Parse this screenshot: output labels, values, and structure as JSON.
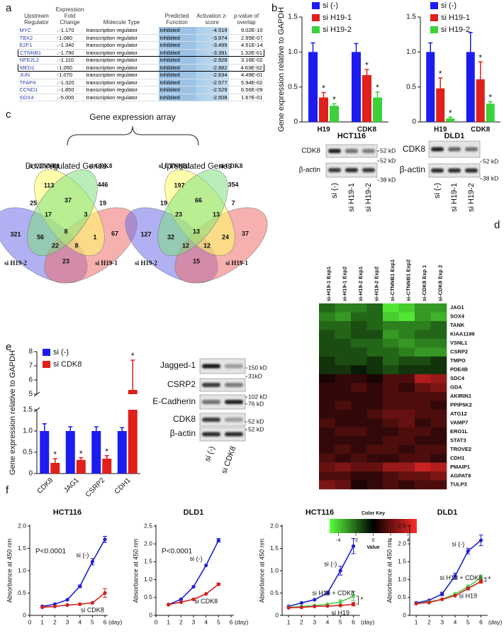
{
  "panel_labels": [
    "a",
    "b",
    "c",
    "d",
    "e",
    "f"
  ],
  "table": {
    "headers": [
      "Upstream Regulator",
      "Expression Fold Change",
      "Molecule Type",
      "Predicted Function",
      "Activation z-score",
      "p-value of overlap"
    ],
    "rows": [
      [
        "MYC",
        "-1.170",
        "transcription regulator",
        "Inhibited",
        "-4.519",
        "9.02E-10"
      ],
      [
        "TBX2",
        "1.080",
        "transcription regulator",
        "Inhibited",
        "-3.974",
        "2.95E-07"
      ],
      [
        "E2F1",
        "-1.340",
        "transcription regulator",
        "Inhibited",
        "-3.499",
        "4.51E-14"
      ],
      [
        "CTNNB1",
        "-1.790",
        "transcription regulator",
        "Inhibited",
        "-3.391",
        "1.32E-01"
      ],
      [
        "NFE2L2",
        "-1.110",
        "transcription regulator",
        "Inhibited",
        "-2.928",
        "3.16E-02"
      ],
      [
        "MED1",
        "1.050",
        "transcription regulator",
        "Inhibited",
        "-2.882",
        "4.63E-02"
      ],
      [
        "JUN",
        "1.070",
        "transcription regulator",
        "Inhibited",
        "-2.634",
        "4.49E-01"
      ],
      [
        "TFAP4",
        "-1.320",
        "transcription regulator",
        "Inhibited",
        "-2.577",
        "5.94E-02"
      ],
      [
        "CCND1",
        "-1.850",
        "transcription regulator",
        "Inhibited",
        "-2.529",
        "6.56E-09"
      ],
      [
        "SOX4",
        "-5.000",
        "transcription regulator",
        "Inhibited",
        "-2.508",
        "1.67E-01"
      ]
    ],
    "boxed_rows": [
      3,
      5
    ]
  },
  "chart_data": [
    {
      "type": "bar",
      "ylabel": "Gene expression relative to GAPDH",
      "categories": [
        "H19",
        "CDK8"
      ],
      "series": [
        {
          "name": "si (-)",
          "color": "#1c1cf0",
          "values": [
            1,
            1
          ],
          "errors": [
            0.13,
            0.12
          ]
        },
        {
          "name": "si H19-1",
          "color": "#e0201a",
          "values": [
            0.35,
            0.67
          ],
          "errors": [
            0.07,
            0.08
          ],
          "stars": [
            "*",
            "*"
          ]
        },
        {
          "name": "si H19-2",
          "color": "#3ad13a",
          "values": [
            0.23,
            0.35
          ],
          "errors": [
            0.03,
            0.08
          ],
          "stars": [
            "*",
            "*"
          ]
        }
      ],
      "ylim": [
        0,
        1.5
      ],
      "yticks": [
        0,
        0.5,
        {
          "value": 1,
          "label": "1.0"
        },
        1.5
      ]
    },
    {
      "type": "bar",
      "categories": [
        "H19",
        "CDK8"
      ],
      "series": [
        {
          "name": "si (-)",
          "color": "#1c1cf0",
          "values": [
            1,
            1
          ],
          "errors": [
            0.13,
            0.28
          ]
        },
        {
          "name": "si H19-1",
          "color": "#e0201a",
          "values": [
            0.48,
            0.61
          ],
          "errors": [
            0.15,
            0.25
          ],
          "stars": [
            "*",
            "*"
          ]
        },
        {
          "name": "si H19-2",
          "color": "#3ad13a",
          "values": [
            0.05,
            0.26
          ],
          "errors": [
            0.02,
            0.03
          ],
          "stars": [
            "*",
            "*"
          ]
        }
      ],
      "ylim": [
        0,
        1.5
      ],
      "yticks": [
        0,
        0.5,
        {
          "value": 1,
          "label": "1.0"
        },
        1.5
      ]
    },
    {
      "type": "bar",
      "ylabel": "Gene expression relative to GAPDH",
      "categories": [
        "CDK8",
        "JAG1",
        "CSRP2",
        "CDH1"
      ],
      "series": [
        {
          "name": "si (-)",
          "color": "#1c1cf0",
          "values": [
            1,
            1,
            1,
            1
          ],
          "errors": [
            0.17,
            0.1,
            0.1,
            0.08
          ]
        },
        {
          "name": "si CDK8",
          "color": "#e0201a",
          "values": [
            0.25,
            0.32,
            0.35,
            5.3
          ],
          "errors": [
            0.1,
            0.05,
            0.07,
            2.1
          ],
          "stars": [
            "*",
            "*",
            "*",
            "*"
          ]
        }
      ],
      "ylim": [
        0,
        8
      ],
      "ybreak": [
        1.5,
        5
      ],
      "yticks": [
        0,
        0.5,
        {
          "value": 1,
          "label": "1.0"
        },
        1.5,
        5,
        6,
        7,
        8
      ]
    },
    {
      "type": "heatmap",
      "columns": [
        "si-H19-1 Exp1",
        "si-H19-1 Exp2",
        "si-H19-2 Exp1",
        "si-H19-2 Exp2",
        "si-CTNNB1 Exp1",
        "si-CTNNB1 Exp2",
        "si-CDK8 Exp 1",
        "si-CDK8 Exp 2"
      ],
      "rows": [
        "JAG1",
        "SOX4",
        "TANK",
        "KIAA1199",
        "VSNL1",
        "CSRP2",
        "TMPO",
        "PDE4B",
        "SDC4",
        "GDA",
        "AKIRIN1",
        "PPIP5K2",
        "ATG12",
        "VAMP7",
        "ERO1L",
        "STAT3",
        "TROVE2",
        "CDH1",
        "PMAIP1",
        "AGPAT9",
        "TULP3"
      ],
      "values": [
        [
          -2,
          -2.5,
          -2.5,
          -2,
          -4.5,
          -4,
          -3,
          -3
        ],
        [
          -2.5,
          -3,
          -2,
          -2,
          -4,
          -4.5,
          -3,
          -3.5
        ],
        [
          -2,
          -2,
          -1.5,
          -2,
          -2.5,
          -2.5,
          -2.5,
          -2
        ],
        [
          -1.5,
          -2,
          -1.5,
          -1.5,
          -3,
          -2.5,
          -2,
          -2
        ],
        [
          -1.5,
          -1.5,
          -2,
          -2,
          -2.5,
          -3,
          -2.5,
          -2.5
        ],
        [
          -1.5,
          -1.5,
          -1.5,
          -2,
          -2,
          -2.5,
          -3,
          -3
        ],
        [
          -1,
          -1.5,
          -1.5,
          -1,
          -2,
          -1.5,
          -1.5,
          -1
        ],
        [
          -1,
          -1,
          -0.5,
          -1,
          -1.5,
          -1,
          -1,
          -1
        ],
        [
          0.5,
          1,
          1,
          0.5,
          1.5,
          1.5,
          3.5,
          3
        ],
        [
          1,
          1,
          1.5,
          1,
          1.5,
          1,
          2,
          2.5
        ],
        [
          1,
          1,
          1,
          1,
          1.5,
          1.5,
          1.5,
          1.5
        ],
        [
          1,
          1.5,
          1,
          1,
          1.5,
          1.5,
          1.5,
          1
        ],
        [
          1,
          1,
          1,
          1.5,
          2,
          2,
          1.5,
          1.5
        ],
        [
          1.5,
          1,
          1,
          1,
          1.5,
          2,
          1,
          1.5
        ],
        [
          1,
          1.5,
          1.5,
          1,
          1,
          1.5,
          1.5,
          1
        ],
        [
          1,
          1,
          1,
          1,
          1.5,
          1.5,
          1,
          1
        ],
        [
          1,
          1.5,
          1,
          1.5,
          1.5,
          1,
          1.5,
          1.5
        ],
        [
          1.5,
          1,
          1.5,
          1,
          1,
          1.5,
          1.5,
          1
        ],
        [
          2,
          2.5,
          2,
          2,
          3,
          3,
          4,
          3.5
        ],
        [
          1.5,
          1.5,
          1,
          1,
          1.5,
          2,
          2,
          2.5
        ],
        [
          2.5,
          2,
          0.5,
          1,
          1.5,
          1,
          1.5,
          1.5
        ]
      ],
      "colorbar": {
        "title": "Color Key",
        "label": "Value",
        "lim": [
          -5,
          5
        ],
        "ticks": [
          -4,
          -2,
          0,
          2,
          4
        ],
        "low_color": "#5aff3c",
        "mid_color": "#000000",
        "high_color": "#ff2a2a"
      }
    },
    {
      "type": "line",
      "title": "HCT116",
      "ylabel": "Absorbance at 450 nm",
      "xlabel": "(day)",
      "annotations": [
        "P<0.0001"
      ],
      "x": [
        1,
        2,
        3,
        4,
        5,
        6
      ],
      "xlim": [
        0,
        6
      ],
      "xticks": [
        0,
        1,
        2,
        3,
        4,
        5,
        6
      ],
      "ylim": [
        0,
        2
      ],
      "yticks": [
        0,
        0.5,
        {
          "value": 1,
          "label": "1.0"
        },
        {
          "value": 1.5,
          "label": "1.5"
        },
        {
          "value": 2,
          "label": "2.0"
        }
      ],
      "series": [
        {
          "name": "si (-)",
          "color": "#2020d0",
          "values": [
            0.2,
            0.25,
            0.35,
            0.65,
            1.2,
            1.7
          ],
          "errors": [
            null,
            null,
            null,
            0.03,
            0.07,
            0.07
          ]
        },
        {
          "name": "si CDK8",
          "color": "#d02020",
          "values": [
            0.18,
            0.2,
            0.23,
            0.25,
            0.28,
            0.5
          ],
          "errors": [
            null,
            null,
            null,
            null,
            null,
            0.1
          ]
        }
      ]
    },
    {
      "type": "line",
      "title": "DLD1",
      "ylabel": "Absorbance at 450 nm",
      "xlabel": "(day)",
      "annotations": [
        "P<0.0001"
      ],
      "x": [
        1,
        2,
        3,
        4,
        5
      ],
      "xlim": [
        0,
        6
      ],
      "xticks": [
        0,
        1,
        2,
        3,
        4,
        5,
        6
      ],
      "ylim": [
        0,
        2.5
      ],
      "yticks": [
        0,
        0.5,
        {
          "value": 1,
          "label": "1.0"
        },
        1.5,
        {
          "value": 2,
          "label": "2.0"
        },
        2.5
      ],
      "series": [
        {
          "name": "si (-)",
          "color": "#2020d0",
          "values": [
            0.3,
            0.45,
            0.8,
            1.4,
            2.1
          ],
          "errors": [
            null,
            null,
            null,
            null,
            0.05
          ]
        },
        {
          "name": "si CDK8",
          "color": "#d02020",
          "values": [
            0.3,
            0.37,
            0.45,
            0.6,
            0.87
          ],
          "errors": [
            null,
            null,
            null,
            null,
            0.03
          ]
        }
      ]
    },
    {
      "type": "line",
      "title": "HCT116",
      "ylabel": "Absorbance at 450 nm",
      "xlabel": "(day)",
      "bracket": "*",
      "x": [
        1,
        2,
        3,
        4,
        5,
        6
      ],
      "xlim": [
        0.5,
        6.3
      ],
      "xticks": [
        1,
        2,
        3,
        4,
        5,
        6
      ],
      "ylim": [
        0,
        2
      ],
      "yticks": [
        0,
        0.5,
        {
          "value": 1,
          "label": "1.0"
        },
        1.5,
        {
          "value": 2,
          "label": "2.0"
        }
      ],
      "series": [
        {
          "name": "si (-)",
          "color": "#2020d0",
          "values": [
            0.2,
            0.28,
            0.35,
            0.5,
            1.0,
            1.55
          ],
          "errors": [
            null,
            null,
            null,
            0.04,
            0.1,
            0.17
          ]
        },
        {
          "name": "si H19 + CDK8",
          "color": "#50d050",
          "values": [
            0.18,
            0.2,
            0.22,
            0.25,
            0.3,
            0.43
          ],
          "errors": [
            null,
            null,
            null,
            null,
            0.05,
            0.1
          ]
        },
        {
          "name": "si H19",
          "color": "#d02020",
          "values": [
            0.17,
            0.18,
            0.2,
            0.21,
            0.22,
            0.25
          ],
          "errors": [
            null,
            null,
            null,
            null,
            null,
            0.04
          ]
        }
      ]
    },
    {
      "type": "line",
      "title": "DLD1",
      "ylabel": "Absorbance at 450 nm",
      "xlabel": "(day)",
      "bracket": "*",
      "x": [
        1,
        2,
        3,
        4,
        5,
        6
      ],
      "xlim": [
        0.5,
        6.3
      ],
      "xticks": [
        1,
        2,
        3,
        4,
        5,
        6
      ],
      "ylim": [
        0,
        2.5
      ],
      "yticks": [
        0,
        0.5,
        {
          "value": 1,
          "label": "1.0"
        },
        1.5,
        {
          "value": 2,
          "label": "2.0"
        },
        2.5
      ],
      "series": [
        {
          "name": "si (-)",
          "color": "#2020d0",
          "values": [
            0.35,
            0.42,
            0.6,
            1.1,
            1.8,
            2.1
          ],
          "errors": [
            null,
            null,
            0.05,
            0.08,
            0.08,
            0.15
          ]
        },
        {
          "name": "si H19 + CDK8",
          "color": "#50d050",
          "values": [
            0.33,
            0.38,
            0.45,
            0.6,
            0.8,
            1.05
          ],
          "errors": [
            null,
            null,
            null,
            null,
            0.05,
            0.08
          ]
        },
        {
          "name": "si H19",
          "color": "#d02020",
          "values": [
            0.33,
            0.36,
            0.45,
            0.55,
            0.75,
            0.95
          ],
          "errors": [
            null,
            null,
            null,
            null,
            0.04,
            0.05
          ]
        }
      ]
    }
  ],
  "venn": {
    "title": "Gene expression array",
    "sets": [
      {
        "name": "si CTNNB1",
        "color": "#ffff66"
      },
      {
        "name": "si CDK8",
        "color": "#7fe07f"
      },
      {
        "name": "si H19-2",
        "color": "#7070e8"
      },
      {
        "name": "si H19-1",
        "color": "#ee7070"
      }
    ],
    "diagrams": [
      {
        "title": "Downregulated Genes",
        "counts": [
          113,
          446,
          321,
          67,
          25,
          37,
          19,
          17,
          3,
          56,
          8,
          1,
          22,
          8,
          23
        ]
      },
      {
        "title": "Upregulated Genes",
        "counts": [
          197,
          354,
          127,
          37,
          19,
          66,
          7,
          23,
          13,
          32,
          13,
          24,
          12,
          12,
          15
        ]
      }
    ]
  },
  "blots": [
    {
      "title": "HCT116",
      "rows": [
        "CDK8",
        "β-actin"
      ],
      "markers": [
        "52 kD",
        "52 kD",
        "38 kD"
      ],
      "lanes": [
        "si (-)",
        "si H19-1",
        "si H19-2"
      ]
    },
    {
      "title": "DLD1",
      "rows": [
        "CDK8",
        "β-actin"
      ],
      "markers": [
        "52 kD",
        "38 kD"
      ],
      "lanes": [
        "si (-)",
        "si H19-1",
        "si H19-2"
      ]
    },
    {
      "rows": [
        "Jagged-1",
        "CSRP2",
        "E-Cadherin",
        "CDK8",
        "β-actin"
      ],
      "markers": [
        "150 kD",
        "31kD",
        "102 kD",
        "76 kD",
        "52 kD",
        "52 kD"
      ],
      "lanes": [
        "si (-)",
        "si CDK8"
      ]
    }
  ]
}
